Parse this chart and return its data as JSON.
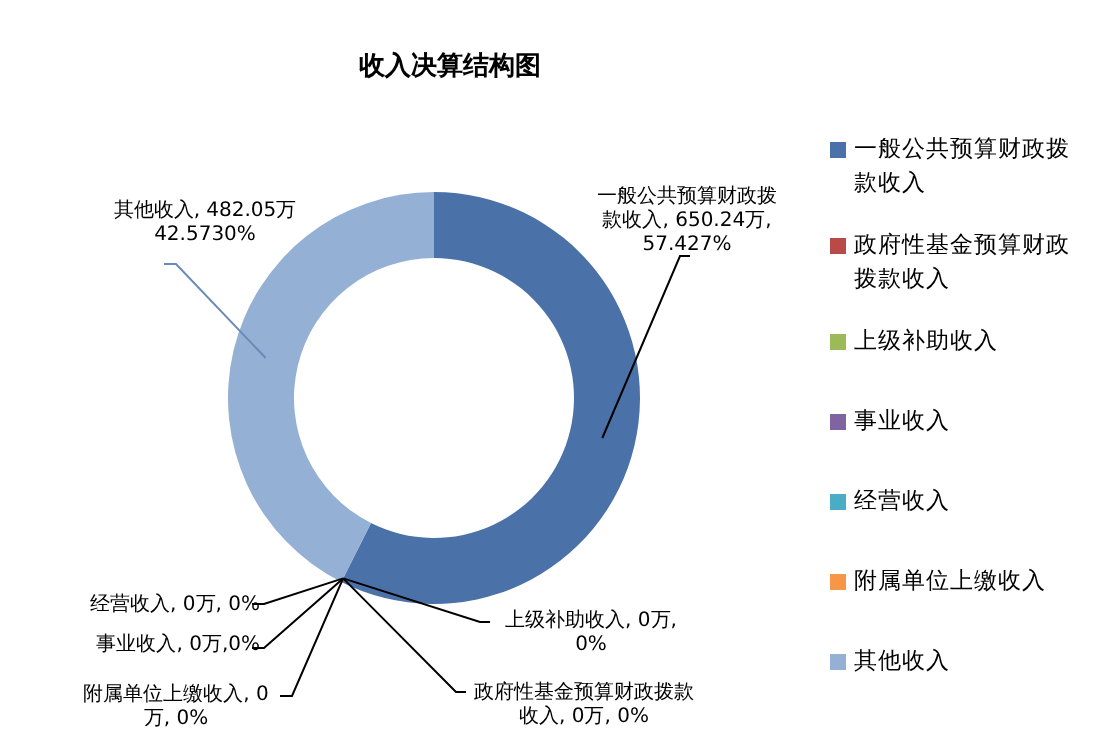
{
  "chart_data": {
    "type": "donut",
    "title": "收入决算结构图",
    "categories": [
      "一般公共预算财政拨款收入",
      "政府性基金预算财政拨款收入",
      "上级补助收入",
      "事业收入",
      "经营收入",
      "附属单位上缴收入",
      "其他收入"
    ],
    "values": [
      650.24,
      0,
      0,
      0,
      0,
      0,
      482.05
    ],
    "colors": [
      "#4a72a8",
      "#b94a48",
      "#9bbb59",
      "#8064a2",
      "#4bacc6",
      "#f79646",
      "#95b0d5"
    ],
    "value_labels": [
      "一般公共预算财政拨款收入, 650.24万, 57.427%",
      "政府性基金预算财政拨款收入, 0万, 0%",
      "上级补助收入, 0万, 0%",
      "事业收入, 0万,0%",
      "经营收入, 0万, 0%",
      "附属单位上缴收入, 0万, 0%",
      "其他收入, 482.05万 42.5730%"
    ],
    "legend": "right"
  }
}
